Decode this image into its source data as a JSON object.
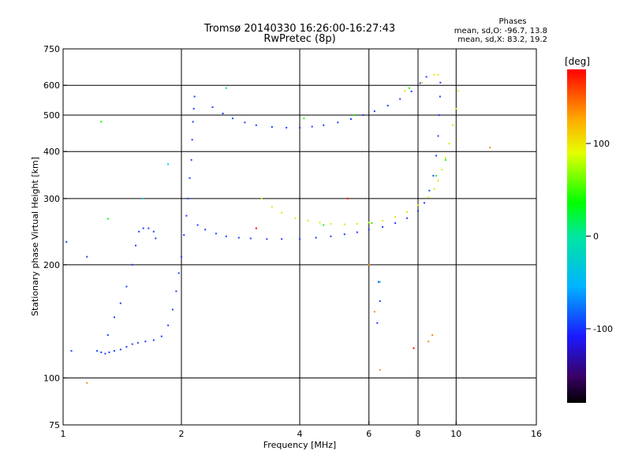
{
  "chart_data": {
    "type": "scatter",
    "title": "Tromsø 20140330 16:26:00-16:27:43",
    "subtitle": "RwPretec (8p)",
    "xlabel": "Frequency [MHz]",
    "ylabel": "Stationary phase Virtual Height [km]",
    "x_scale": "log2",
    "y_scale": "log",
    "xlim": [
      1,
      16
    ],
    "ylim": [
      75,
      750
    ],
    "x_ticks": [
      1,
      2,
      4,
      6,
      8,
      10,
      16
    ],
    "y_ticks": [
      75,
      100,
      200,
      300,
      400,
      500,
      600,
      750
    ],
    "grid": true,
    "phases_box": {
      "title": "Phases",
      "line_o": "mean, sd,O: -96.7, 13.8",
      "line_x": "mean, sd,X:  83.2, 19.2"
    },
    "colorbar": {
      "label": "[deg]",
      "ticks": [
        "100",
        "0",
        "-100"
      ],
      "tick_values": [
        100,
        0,
        -100
      ],
      "range": [
        -180,
        180
      ]
    },
    "series": [
      {
        "color": "#1f3cff",
        "values_note": "",
        "points": [
          [
            1.22,
            118
          ],
          [
            1.25,
            117
          ],
          [
            1.28,
            116
          ],
          [
            1.31,
            117
          ],
          [
            1.35,
            118
          ],
          [
            1.4,
            119
          ],
          [
            1.45,
            121
          ],
          [
            1.5,
            123
          ],
          [
            1.55,
            124
          ],
          [
            1.62,
            125
          ],
          [
            1.7,
            126
          ],
          [
            1.78,
            129
          ],
          [
            1.85,
            138
          ],
          [
            1.9,
            152
          ],
          [
            1.94,
            170
          ],
          [
            1.97,
            190
          ],
          [
            2.0,
            210
          ],
          [
            2.03,
            240
          ],
          [
            2.06,
            270
          ],
          [
            2.08,
            300
          ],
          [
            2.1,
            340
          ],
          [
            2.12,
            380
          ],
          [
            2.13,
            430
          ],
          [
            2.14,
            480
          ],
          [
            2.15,
            520
          ],
          [
            2.16,
            560
          ],
          [
            1.3,
            130
          ],
          [
            1.35,
            145
          ],
          [
            1.4,
            158
          ],
          [
            1.45,
            175
          ],
          [
            1.5,
            200
          ],
          [
            1.53,
            225
          ],
          [
            1.56,
            245
          ],
          [
            1.6,
            250
          ],
          [
            1.65,
            250
          ],
          [
            1.7,
            245
          ],
          [
            1.72,
            235
          ],
          [
            2.2,
            255
          ],
          [
            2.3,
            248
          ],
          [
            2.45,
            242
          ],
          [
            2.6,
            238
          ],
          [
            2.8,
            236
          ],
          [
            3.0,
            235
          ],
          [
            3.3,
            234
          ],
          [
            3.6,
            234
          ],
          [
            4.0,
            234
          ],
          [
            4.4,
            236
          ],
          [
            4.8,
            238
          ],
          [
            5.2,
            241
          ],
          [
            5.6,
            244
          ],
          [
            6.0,
            248
          ],
          [
            6.5,
            252
          ],
          [
            7.0,
            258
          ],
          [
            7.5,
            266
          ],
          [
            8.0,
            278
          ],
          [
            8.3,
            292
          ],
          [
            8.55,
            315
          ],
          [
            8.75,
            345
          ],
          [
            8.9,
            390
          ],
          [
            9.0,
            440
          ],
          [
            9.05,
            500
          ],
          [
            9.1,
            560
          ],
          [
            9.12,
            610
          ],
          [
            2.4,
            525
          ],
          [
            2.55,
            505
          ],
          [
            2.7,
            490
          ],
          [
            2.9,
            478
          ],
          [
            3.1,
            470
          ],
          [
            3.4,
            465
          ],
          [
            3.7,
            463
          ],
          [
            4.0,
            463
          ],
          [
            4.3,
            466
          ],
          [
            4.6,
            470
          ],
          [
            5.0,
            478
          ],
          [
            5.4,
            488
          ],
          [
            5.8,
            500
          ],
          [
            6.2,
            512
          ],
          [
            6.7,
            530
          ],
          [
            7.2,
            552
          ],
          [
            7.7,
            578
          ],
          [
            8.1,
            608
          ],
          [
            8.4,
            632
          ],
          [
            6.3,
            140
          ],
          [
            6.4,
            160
          ],
          [
            6.35,
            180
          ],
          [
            1.05,
            118
          ],
          [
            1.02,
            230
          ],
          [
            1.15,
            210
          ]
        ]
      },
      {
        "color": "#e6e600",
        "values_note": "",
        "points": [
          [
            3.2,
            300
          ],
          [
            3.4,
            285
          ],
          [
            3.6,
            275
          ],
          [
            3.9,
            266
          ],
          [
            4.2,
            262
          ],
          [
            4.5,
            259
          ],
          [
            4.8,
            257
          ],
          [
            5.2,
            256
          ],
          [
            5.6,
            257
          ],
          [
            6.0,
            259
          ],
          [
            6.5,
            262
          ],
          [
            7.0,
            268
          ],
          [
            7.5,
            276
          ],
          [
            8.0,
            288
          ],
          [
            8.5,
            302
          ],
          [
            8.8,
            318
          ],
          [
            9.0,
            335
          ],
          [
            9.2,
            358
          ],
          [
            9.4,
            385
          ],
          [
            9.6,
            420
          ],
          [
            9.8,
            470
          ],
          [
            10.0,
            520
          ],
          [
            10.1,
            580
          ],
          [
            8.8,
            640
          ],
          [
            9.0,
            640
          ],
          [
            7.4,
            580
          ],
          [
            8.2,
            610
          ]
        ]
      },
      {
        "color": "#00ff00",
        "values_note": "",
        "points": [
          [
            1.25,
            480
          ],
          [
            1.3,
            265
          ],
          [
            4.6,
            255
          ],
          [
            5.5,
            500
          ],
          [
            6.1,
            258
          ],
          [
            8.9,
            345
          ],
          [
            9.4,
            380
          ],
          [
            7.6,
            590
          ],
          [
            4.1,
            490
          ]
        ]
      },
      {
        "color": "#ff8800",
        "values_note": "",
        "points": [
          [
            6.4,
            105
          ],
          [
            6.2,
            150
          ],
          [
            8.5,
            125
          ],
          [
            8.7,
            130
          ],
          [
            12.2,
            410
          ],
          [
            6.0,
            200
          ],
          [
            1.15,
            97
          ]
        ]
      },
      {
        "color": "#ff0000",
        "values_note": "",
        "points": [
          [
            5.3,
            300
          ],
          [
            3.1,
            250
          ],
          [
            7.8,
            120
          ]
        ]
      },
      {
        "color": "#00cccc",
        "values_note": "",
        "points": [
          [
            1.6,
            300
          ],
          [
            6.4,
            180
          ],
          [
            1.85,
            370
          ],
          [
            2.6,
            590
          ]
        ]
      }
    ]
  }
}
